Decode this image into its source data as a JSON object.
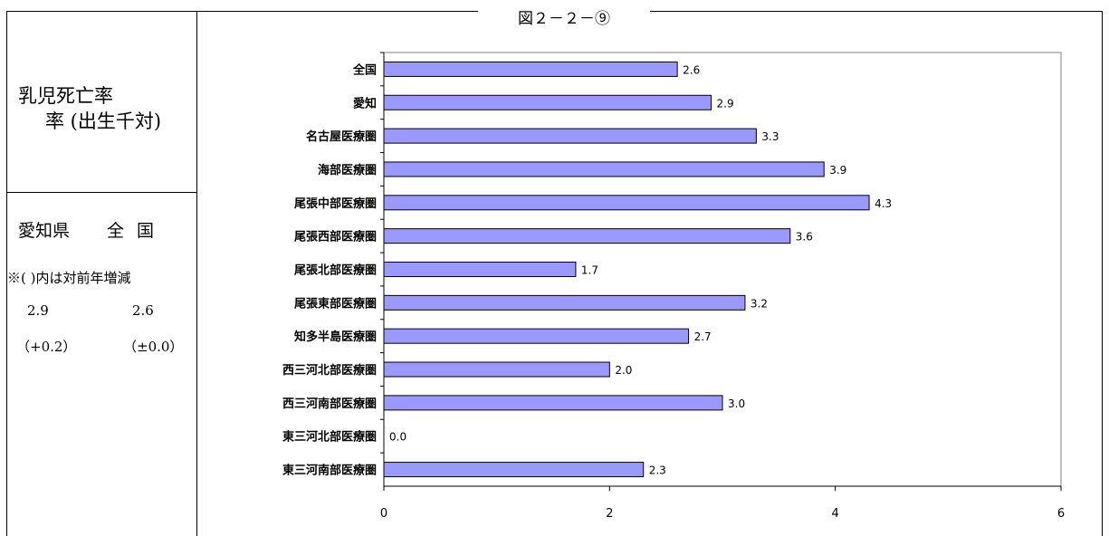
{
  "figure_caption": "図２－２－⑨",
  "side_panel": {
    "title_line1": "乳児死亡率",
    "title_line2": "率 (出生千対)",
    "heading_aichi": "愛知県",
    "heading_zenkoku": "全国",
    "note": "※( )内は対前年増減",
    "value_aichi": "2.9",
    "value_zenkoku": "2.6",
    "change_aichi": "（+0.2）",
    "change_zenkoku": "（±0.0）"
  },
  "chart_data": {
    "type": "bar",
    "orientation": "horizontal",
    "categories": [
      "全国",
      "愛知",
      "名古屋医療圏",
      "海部医療圏",
      "尾張中部医療圏",
      "尾張西部医療圏",
      "尾張北部医療圏",
      "尾張東部医療圏",
      "知多半島医療圏",
      "西三河北部医療圏",
      "西三河南部医療圏",
      "東三河北部医療圏",
      "東三河南部医療圏"
    ],
    "values": [
      2.6,
      2.9,
      3.3,
      3.9,
      4.3,
      3.6,
      1.7,
      3.2,
      2.7,
      2.0,
      3.0,
      0.0,
      2.3
    ],
    "value_labels": [
      "2.6",
      "2.9",
      "3.3",
      "3.9",
      "4.3",
      "3.6",
      "1.7",
      "3.2",
      "2.7",
      "2.0",
      "3.0",
      "0.0",
      "2.3"
    ],
    "xlim": [
      0,
      6
    ],
    "xticks": [
      0,
      2,
      4,
      6
    ],
    "grid": false,
    "bar_color": "#9999ff",
    "bar_edge_color": "#000000"
  }
}
